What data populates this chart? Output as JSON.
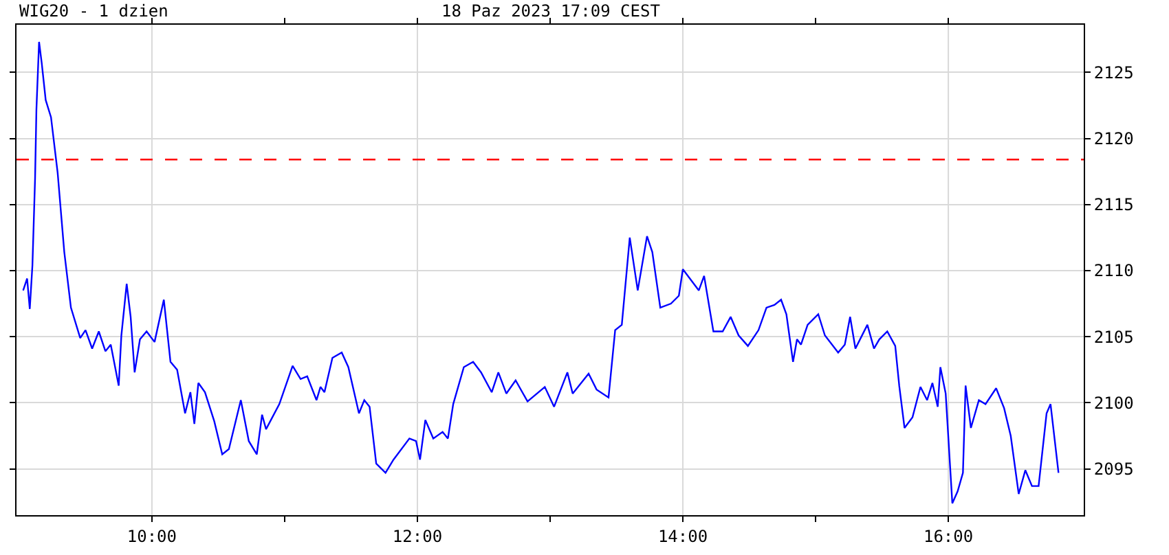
{
  "chart_data": {
    "type": "line",
    "title": "WIG20 - 1 dzien",
    "subtitle": "18 Paz 2023 17:09 CEST",
    "x": [
      9.03,
      9.06,
      9.08,
      9.1,
      9.12,
      9.13,
      9.15,
      9.17,
      9.2,
      9.24,
      9.29,
      9.34,
      9.39,
      9.46,
      9.5,
      9.55,
      9.6,
      9.65,
      9.69,
      9.75,
      9.77,
      9.81,
      9.84,
      9.87,
      9.91,
      9.96,
      10.02,
      10.09,
      10.14,
      10.19,
      10.25,
      10.29,
      10.32,
      10.35,
      10.4,
      10.47,
      10.53,
      10.58,
      10.67,
      10.73,
      10.79,
      10.83,
      10.86,
      10.96,
      11.06,
      11.12,
      11.17,
      11.24,
      11.27,
      11.3,
      11.36,
      11.43,
      11.48,
      11.56,
      11.6,
      11.64,
      11.69,
      11.76,
      11.82,
      11.94,
      11.99,
      12.02,
      12.06,
      12.12,
      12.19,
      12.23,
      12.27,
      12.35,
      12.42,
      12.48,
      12.56,
      12.61,
      12.67,
      12.74,
      12.83,
      12.96,
      13.03,
      13.13,
      13.17,
      13.29,
      13.35,
      13.44,
      13.49,
      13.54,
      13.6,
      13.66,
      13.73,
      13.77,
      13.83,
      13.91,
      13.97,
      14.0,
      14.12,
      14.16,
      14.23,
      14.3,
      14.36,
      14.42,
      14.49,
      14.57,
      14.63,
      14.69,
      14.74,
      14.78,
      14.83,
      14.86,
      14.89,
      14.94,
      15.02,
      15.07,
      15.17,
      15.22,
      15.26,
      15.3,
      15.39,
      15.44,
      15.48,
      15.54,
      15.6,
      15.63,
      15.67,
      15.73,
      15.79,
      15.84,
      15.88,
      15.92,
      15.94,
      15.98,
      16.03,
      16.07,
      16.11,
      16.13,
      16.17,
      16.23,
      16.28,
      16.36,
      16.42,
      16.47,
      16.53,
      16.58,
      16.63,
      16.68,
      16.74,
      16.77,
      16.83
    ],
    "series": [
      {
        "color": "#0000ff",
        "values": [
          2108.5,
          2109.4,
          2107.1,
          2110.4,
          2117.0,
          2122.2,
          2127.3,
          2125.7,
          2122.9,
          2121.6,
          2117.4,
          2111.4,
          2107.2,
          2104.9,
          2105.5,
          2104.1,
          2105.4,
          2103.9,
          2104.4,
          2101.3,
          2105.1,
          2109.0,
          2106.5,
          2102.3,
          2104.8,
          2105.4,
          2104.6,
          2107.8,
          2103.1,
          2102.5,
          2099.2,
          2100.8,
          2098.4,
          2101.5,
          2100.8,
          2098.6,
          2096.1,
          2096.5,
          2100.2,
          2097.1,
          2096.1,
          2099.1,
          2098.0,
          2099.9,
          2102.8,
          2101.8,
          2102.0,
          2100.2,
          2101.2,
          2100.8,
          2103.4,
          2103.8,
          2102.7,
          2099.2,
          2100.2,
          2099.7,
          2095.4,
          2094.7,
          2095.7,
          2097.3,
          2097.1,
          2095.7,
          2098.7,
          2097.3,
          2097.8,
          2097.3,
          2099.9,
          2102.7,
          2103.1,
          2102.3,
          2100.8,
          2102.3,
          2100.7,
          2101.7,
          2100.1,
          2101.2,
          2099.7,
          2102.3,
          2100.7,
          2102.2,
          2101.0,
          2100.4,
          2105.5,
          2105.9,
          2112.5,
          2108.5,
          2112.6,
          2111.4,
          2107.2,
          2107.5,
          2108.1,
          2110.1,
          2108.5,
          2109.6,
          2105.4,
          2105.4,
          2106.5,
          2105.1,
          2104.3,
          2105.5,
          2107.2,
          2107.4,
          2107.8,
          2106.7,
          2103.1,
          2104.8,
          2104.4,
          2105.9,
          2106.7,
          2105.1,
          2103.8,
          2104.4,
          2106.5,
          2104.1,
          2105.9,
          2104.1,
          2104.8,
          2105.4,
          2104.3,
          2101.3,
          2098.1,
          2098.9,
          2101.2,
          2100.2,
          2101.5,
          2099.7,
          2102.7,
          2100.7,
          2092.4,
          2093.3,
          2094.7,
          2101.3,
          2098.1,
          2100.2,
          2099.9,
          2101.1,
          2099.6,
          2097.5,
          2093.1,
          2094.9,
          2093.7,
          2093.7,
          2099.2,
          2099.9,
          2094.7
        ]
      }
    ],
    "xlim": [
      8.98,
      17.02
    ],
    "ylim": [
      2091.5,
      2128.6
    ],
    "xticks": [
      {
        "value": 10,
        "label": "10:00"
      },
      {
        "value": 11,
        "label": null
      },
      {
        "value": 12,
        "label": "12:00"
      },
      {
        "value": 13,
        "label": null
      },
      {
        "value": 14,
        "label": "14:00"
      },
      {
        "value": 15,
        "label": null
      },
      {
        "value": 16,
        "label": "16:00"
      }
    ],
    "yticks": [
      2095,
      2100,
      2105,
      2110,
      2115,
      2120,
      2125
    ],
    "ref_lines": [
      {
        "axis": "y",
        "value": 2118.4,
        "color": "#ff0000",
        "line_style": "dashed"
      }
    ],
    "grid": true,
    "marker": "none",
    "line_style": "solid"
  }
}
